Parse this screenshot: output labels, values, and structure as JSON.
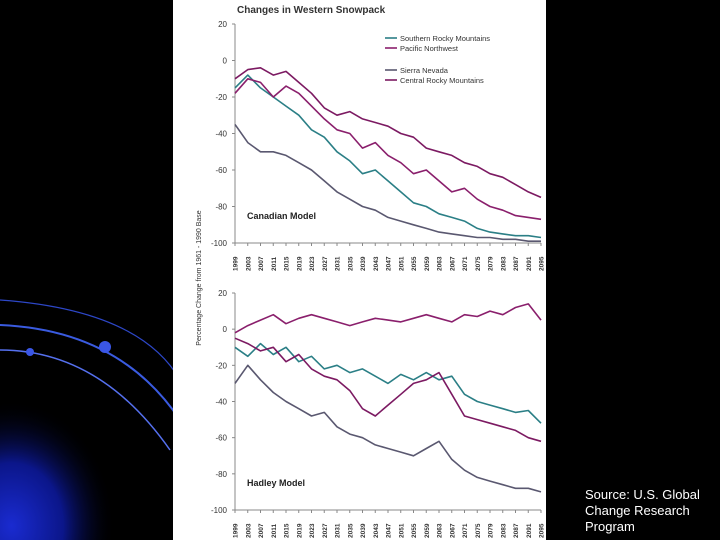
{
  "source": {
    "line1": "Source: U.S. Global",
    "line2": "Change Research",
    "line3": "Program"
  },
  "colors": {
    "southern_rocky": "#2b7f86",
    "pacific_northwest": "#8a1f6c",
    "sierra_nevada": "#5a5870",
    "central_rocky": "#7c1a62",
    "background": "#000000",
    "slide_accent": "#0a1680"
  },
  "chart_data": [
    {
      "type": "line",
      "title": "Changes in Western Snowpack",
      "model_label": "Canadian Model",
      "ylabel": "Percentage Change from 1961 - 1990 Base",
      "xlabel": "",
      "ylim": [
        -100,
        20
      ],
      "yticks": [
        20,
        0,
        -20,
        -40,
        -60,
        -80,
        -100
      ],
      "xlim": [
        1999,
        2095
      ],
      "xticks": [
        1999,
        2003,
        2007,
        2011,
        2015,
        2019,
        2023,
        2027,
        2031,
        2035,
        2039,
        2043,
        2047,
        2051,
        2055,
        2059,
        2063,
        2067,
        2071,
        2075,
        2079,
        2083,
        2087,
        2091,
        2095
      ],
      "legend": {
        "group1": [
          "Southern Rocky Mountains",
          "Pacific Northwest"
        ],
        "group2": [
          "Sierra Nevada",
          "Central Rocky Mountains"
        ],
        "placement": "top-right"
      },
      "series": [
        {
          "name": "Southern Rocky Mountains",
          "color_key": "southern_rocky",
          "x": [
            1999,
            2003,
            2007,
            2011,
            2015,
            2019,
            2023,
            2027,
            2031,
            2035,
            2039,
            2043,
            2047,
            2051,
            2055,
            2059,
            2063,
            2067,
            2071,
            2075,
            2079,
            2083,
            2087,
            2091,
            2095
          ],
          "values": [
            -15,
            -8,
            -15,
            -20,
            -25,
            -30,
            -38,
            -42,
            -50,
            -55,
            -62,
            -60,
            -66,
            -72,
            -78,
            -80,
            -84,
            -86,
            -88,
            -92,
            -94,
            -95,
            -96,
            -96,
            -97
          ]
        },
        {
          "name": "Pacific Northwest",
          "color_key": "pacific_northwest",
          "x": [
            1999,
            2003,
            2007,
            2011,
            2015,
            2019,
            2023,
            2027,
            2031,
            2035,
            2039,
            2043,
            2047,
            2051,
            2055,
            2059,
            2063,
            2067,
            2071,
            2075,
            2079,
            2083,
            2087,
            2091,
            2095
          ],
          "values": [
            -18,
            -10,
            -12,
            -20,
            -14,
            -18,
            -25,
            -32,
            -38,
            -40,
            -48,
            -45,
            -52,
            -56,
            -62,
            -60,
            -66,
            -72,
            -70,
            -76,
            -80,
            -82,
            -85,
            -86,
            -87
          ]
        },
        {
          "name": "Sierra Nevada",
          "color_key": "sierra_nevada",
          "x": [
            1999,
            2003,
            2007,
            2011,
            2015,
            2019,
            2023,
            2027,
            2031,
            2035,
            2039,
            2043,
            2047,
            2051,
            2055,
            2059,
            2063,
            2067,
            2071,
            2075,
            2079,
            2083,
            2087,
            2091,
            2095
          ],
          "values": [
            -35,
            -45,
            -50,
            -50,
            -52,
            -56,
            -60,
            -66,
            -72,
            -76,
            -80,
            -82,
            -86,
            -88,
            -90,
            -92,
            -94,
            -95,
            -96,
            -97,
            -97,
            -98,
            -98,
            -99,
            -99
          ]
        },
        {
          "name": "Central Rocky Mountains",
          "color_key": "central_rocky",
          "x": [
            1999,
            2003,
            2007,
            2011,
            2015,
            2019,
            2023,
            2027,
            2031,
            2035,
            2039,
            2043,
            2047,
            2051,
            2055,
            2059,
            2063,
            2067,
            2071,
            2075,
            2079,
            2083,
            2087,
            2091,
            2095
          ],
          "values": [
            -10,
            -5,
            -4,
            -8,
            -6,
            -12,
            -18,
            -26,
            -30,
            -28,
            -32,
            -34,
            -36,
            -40,
            -42,
            -48,
            -50,
            -52,
            -56,
            -58,
            -62,
            -64,
            -68,
            -72,
            -75
          ]
        }
      ]
    },
    {
      "type": "line",
      "title": "",
      "model_label": "Hadley Model",
      "ylabel": "Percentage Change from 1961 - 1990 Base",
      "xlabel": "",
      "ylim": [
        -100,
        20
      ],
      "yticks": [
        20,
        0,
        -20,
        -40,
        -60,
        -80,
        -100
      ],
      "xlim": [
        1999,
        2095
      ],
      "xticks": [
        1999,
        2003,
        2007,
        2011,
        2015,
        2019,
        2023,
        2027,
        2031,
        2035,
        2039,
        2043,
        2047,
        2051,
        2055,
        2059,
        2063,
        2067,
        2071,
        2075,
        2079,
        2083,
        2087,
        2091,
        2095
      ],
      "series": [
        {
          "name": "Southern Rocky Mountains",
          "color_key": "southern_rocky",
          "x": [
            1999,
            2003,
            2007,
            2011,
            2015,
            2019,
            2023,
            2027,
            2031,
            2035,
            2039,
            2043,
            2047,
            2051,
            2055,
            2059,
            2063,
            2067,
            2071,
            2075,
            2079,
            2083,
            2087,
            2091,
            2095
          ],
          "values": [
            -10,
            -15,
            -8,
            -14,
            -10,
            -18,
            -15,
            -22,
            -20,
            -24,
            -22,
            -26,
            -30,
            -25,
            -28,
            -24,
            -28,
            -26,
            -36,
            -40,
            -42,
            -44,
            -46,
            -45,
            -52
          ]
        },
        {
          "name": "Pacific Northwest",
          "color_key": "pacific_northwest",
          "x": [
            1999,
            2003,
            2007,
            2011,
            2015,
            2019,
            2023,
            2027,
            2031,
            2035,
            2039,
            2043,
            2047,
            2051,
            2055,
            2059,
            2063,
            2067,
            2071,
            2075,
            2079,
            2083,
            2087,
            2091,
            2095
          ],
          "values": [
            -2,
            2,
            5,
            8,
            3,
            6,
            8,
            6,
            4,
            2,
            4,
            6,
            5,
            4,
            6,
            8,
            6,
            4,
            8,
            7,
            10,
            8,
            12,
            14,
            5
          ]
        },
        {
          "name": "Sierra Nevada",
          "color_key": "sierra_nevada",
          "x": [
            1999,
            2003,
            2007,
            2011,
            2015,
            2019,
            2023,
            2027,
            2031,
            2035,
            2039,
            2043,
            2047,
            2051,
            2055,
            2059,
            2063,
            2067,
            2071,
            2075,
            2079,
            2083,
            2087,
            2091,
            2095
          ],
          "values": [
            -30,
            -20,
            -28,
            -35,
            -40,
            -44,
            -48,
            -46,
            -54,
            -58,
            -60,
            -64,
            -66,
            -68,
            -70,
            -66,
            -62,
            -72,
            -78,
            -82,
            -84,
            -86,
            -88,
            -88,
            -90
          ]
        },
        {
          "name": "Central Rocky Mountains",
          "color_key": "central_rocky",
          "x": [
            1999,
            2003,
            2007,
            2011,
            2015,
            2019,
            2023,
            2027,
            2031,
            2035,
            2039,
            2043,
            2047,
            2051,
            2055,
            2059,
            2063,
            2067,
            2071,
            2075,
            2079,
            2083,
            2087,
            2091,
            2095
          ],
          "values": [
            -5,
            -8,
            -12,
            -10,
            -18,
            -14,
            -22,
            -26,
            -28,
            -34,
            -44,
            -48,
            -42,
            -36,
            -30,
            -28,
            -24,
            -36,
            -48,
            -50,
            -52,
            -54,
            -56,
            -60,
            -62
          ]
        }
      ]
    }
  ]
}
